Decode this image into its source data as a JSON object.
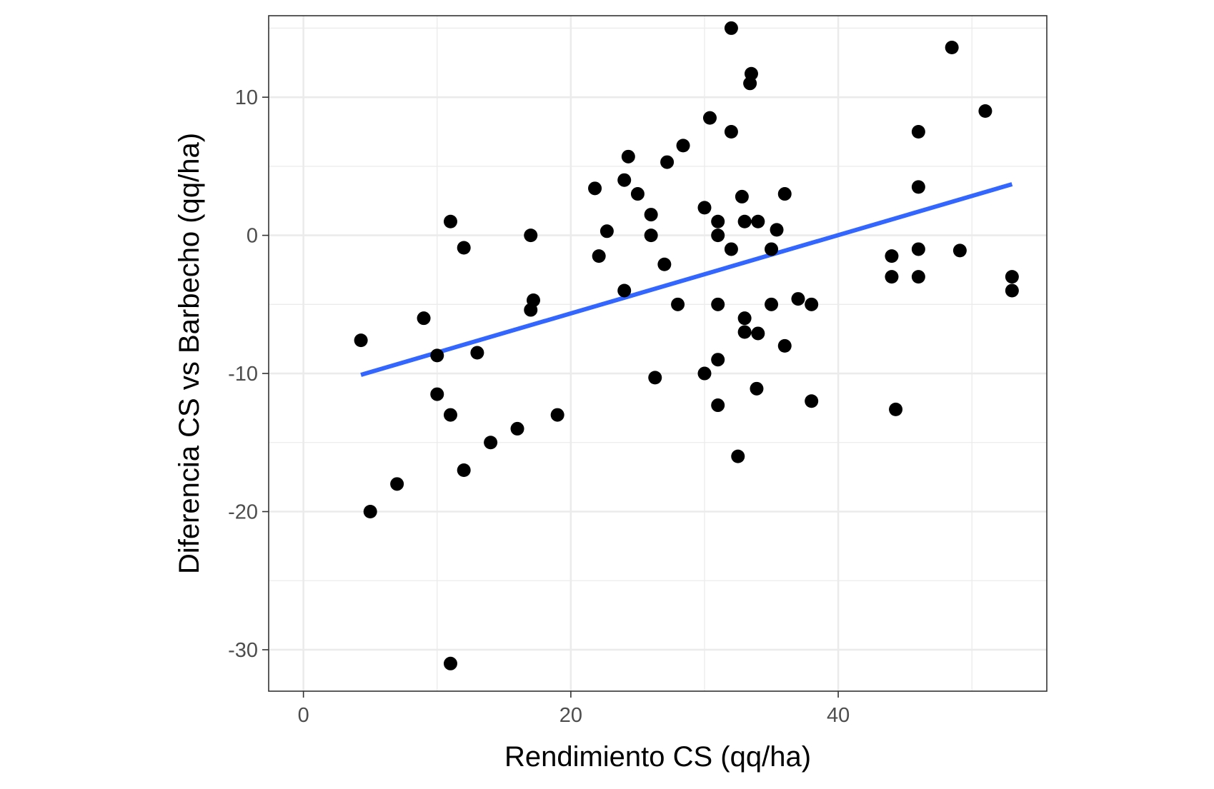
{
  "chart_data": {
    "type": "scatter",
    "title": "",
    "xlabel": "Rendimiento CS (qq/ha)",
    "ylabel": "Diferencia CS vs Barbecho (qq/ha)",
    "xlim": [
      -2.6,
      55.6
    ],
    "ylim": [
      -33,
      15.9
    ],
    "x_ticks": [
      0,
      20,
      40
    ],
    "x_tick_labels": [
      "0",
      "20",
      "40"
    ],
    "y_ticks": [
      -30,
      -20,
      -10,
      0,
      10
    ],
    "y_tick_labels": [
      "-30",
      "-20",
      "-10",
      "0",
      "10"
    ],
    "x_minor_ticks": [
      10,
      30,
      50
    ],
    "y_minor_ticks": [
      -25,
      -15,
      -5,
      5,
      15
    ],
    "grid": true,
    "theme": "bw",
    "colors": {
      "points": "#000000",
      "trend_line": "#3366ff",
      "grid": "#ebebeb",
      "panel_border": "#333333",
      "background": "#ffffff"
    },
    "points": [
      {
        "x": 4.3,
        "y": -7.6
      },
      {
        "x": 5.0,
        "y": -20.0
      },
      {
        "x": 7.0,
        "y": -18.0
      },
      {
        "x": 9.0,
        "y": -6.0
      },
      {
        "x": 10.0,
        "y": -8.7
      },
      {
        "x": 10.0,
        "y": -11.5
      },
      {
        "x": 11.0,
        "y": 1.0
      },
      {
        "x": 11.0,
        "y": -13.0
      },
      {
        "x": 11.0,
        "y": -31.0
      },
      {
        "x": 12.0,
        "y": -0.9
      },
      {
        "x": 12.0,
        "y": -17.0
      },
      {
        "x": 13.0,
        "y": -8.5
      },
      {
        "x": 14.0,
        "y": -15.0
      },
      {
        "x": 16.0,
        "y": -14.0
      },
      {
        "x": 17.0,
        "y": 0.0
      },
      {
        "x": 17.0,
        "y": -5.4
      },
      {
        "x": 17.2,
        "y": -4.7
      },
      {
        "x": 19.0,
        "y": -13.0
      },
      {
        "x": 21.8,
        "y": 3.4
      },
      {
        "x": 22.1,
        "y": -1.5
      },
      {
        "x": 22.7,
        "y": 0.3
      },
      {
        "x": 24.0,
        "y": 4.0
      },
      {
        "x": 24.0,
        "y": -4.0
      },
      {
        "x": 24.3,
        "y": 5.7
      },
      {
        "x": 25.0,
        "y": 3.0
      },
      {
        "x": 26.0,
        "y": 1.5
      },
      {
        "x": 26.0,
        "y": 0.0
      },
      {
        "x": 26.3,
        "y": -10.3
      },
      {
        "x": 27.0,
        "y": -2.1
      },
      {
        "x": 27.2,
        "y": 5.3
      },
      {
        "x": 28.0,
        "y": -5.0
      },
      {
        "x": 28.4,
        "y": 6.5
      },
      {
        "x": 30.0,
        "y": 2.0
      },
      {
        "x": 30.0,
        "y": -10.0
      },
      {
        "x": 30.4,
        "y": 8.5
      },
      {
        "x": 31.0,
        "y": 1.0
      },
      {
        "x": 31.0,
        "y": 0.0
      },
      {
        "x": 31.0,
        "y": -5.0
      },
      {
        "x": 31.0,
        "y": -9.0
      },
      {
        "x": 31.0,
        "y": -12.3
      },
      {
        "x": 32.0,
        "y": 15.0
      },
      {
        "x": 32.0,
        "y": 7.5
      },
      {
        "x": 32.0,
        "y": -1.0
      },
      {
        "x": 32.5,
        "y": -16.0
      },
      {
        "x": 32.8,
        "y": 2.8
      },
      {
        "x": 33.0,
        "y": 1.0
      },
      {
        "x": 33.0,
        "y": -6.0
      },
      {
        "x": 33.0,
        "y": -7.0
      },
      {
        "x": 33.4,
        "y": 11.0
      },
      {
        "x": 33.5,
        "y": 11.7
      },
      {
        "x": 33.9,
        "y": -11.1
      },
      {
        "x": 34.0,
        "y": 1.0
      },
      {
        "x": 34.0,
        "y": -7.1
      },
      {
        "x": 35.0,
        "y": -1.0
      },
      {
        "x": 35.0,
        "y": -5.0
      },
      {
        "x": 35.4,
        "y": 0.4
      },
      {
        "x": 36.0,
        "y": 3.0
      },
      {
        "x": 36.0,
        "y": -8.0
      },
      {
        "x": 37.0,
        "y": -4.6
      },
      {
        "x": 38.0,
        "y": -5.0
      },
      {
        "x": 38.0,
        "y": -12.0
      },
      {
        "x": 44.0,
        "y": -1.5
      },
      {
        "x": 44.0,
        "y": -3.0
      },
      {
        "x": 44.3,
        "y": -12.6
      },
      {
        "x": 46.0,
        "y": 7.5
      },
      {
        "x": 46.0,
        "y": 3.5
      },
      {
        "x": 46.0,
        "y": -1.0
      },
      {
        "x": 46.0,
        "y": -3.0
      },
      {
        "x": 48.5,
        "y": 13.6
      },
      {
        "x": 49.1,
        "y": -1.1
      },
      {
        "x": 51.0,
        "y": 9.0
      },
      {
        "x": 53.0,
        "y": -3.0
      },
      {
        "x": 53.0,
        "y": -4.0
      }
    ],
    "trend_line": {
      "method": "linear",
      "x": [
        4.3,
        53.0
      ],
      "y": [
        -10.1,
        3.7
      ]
    }
  }
}
